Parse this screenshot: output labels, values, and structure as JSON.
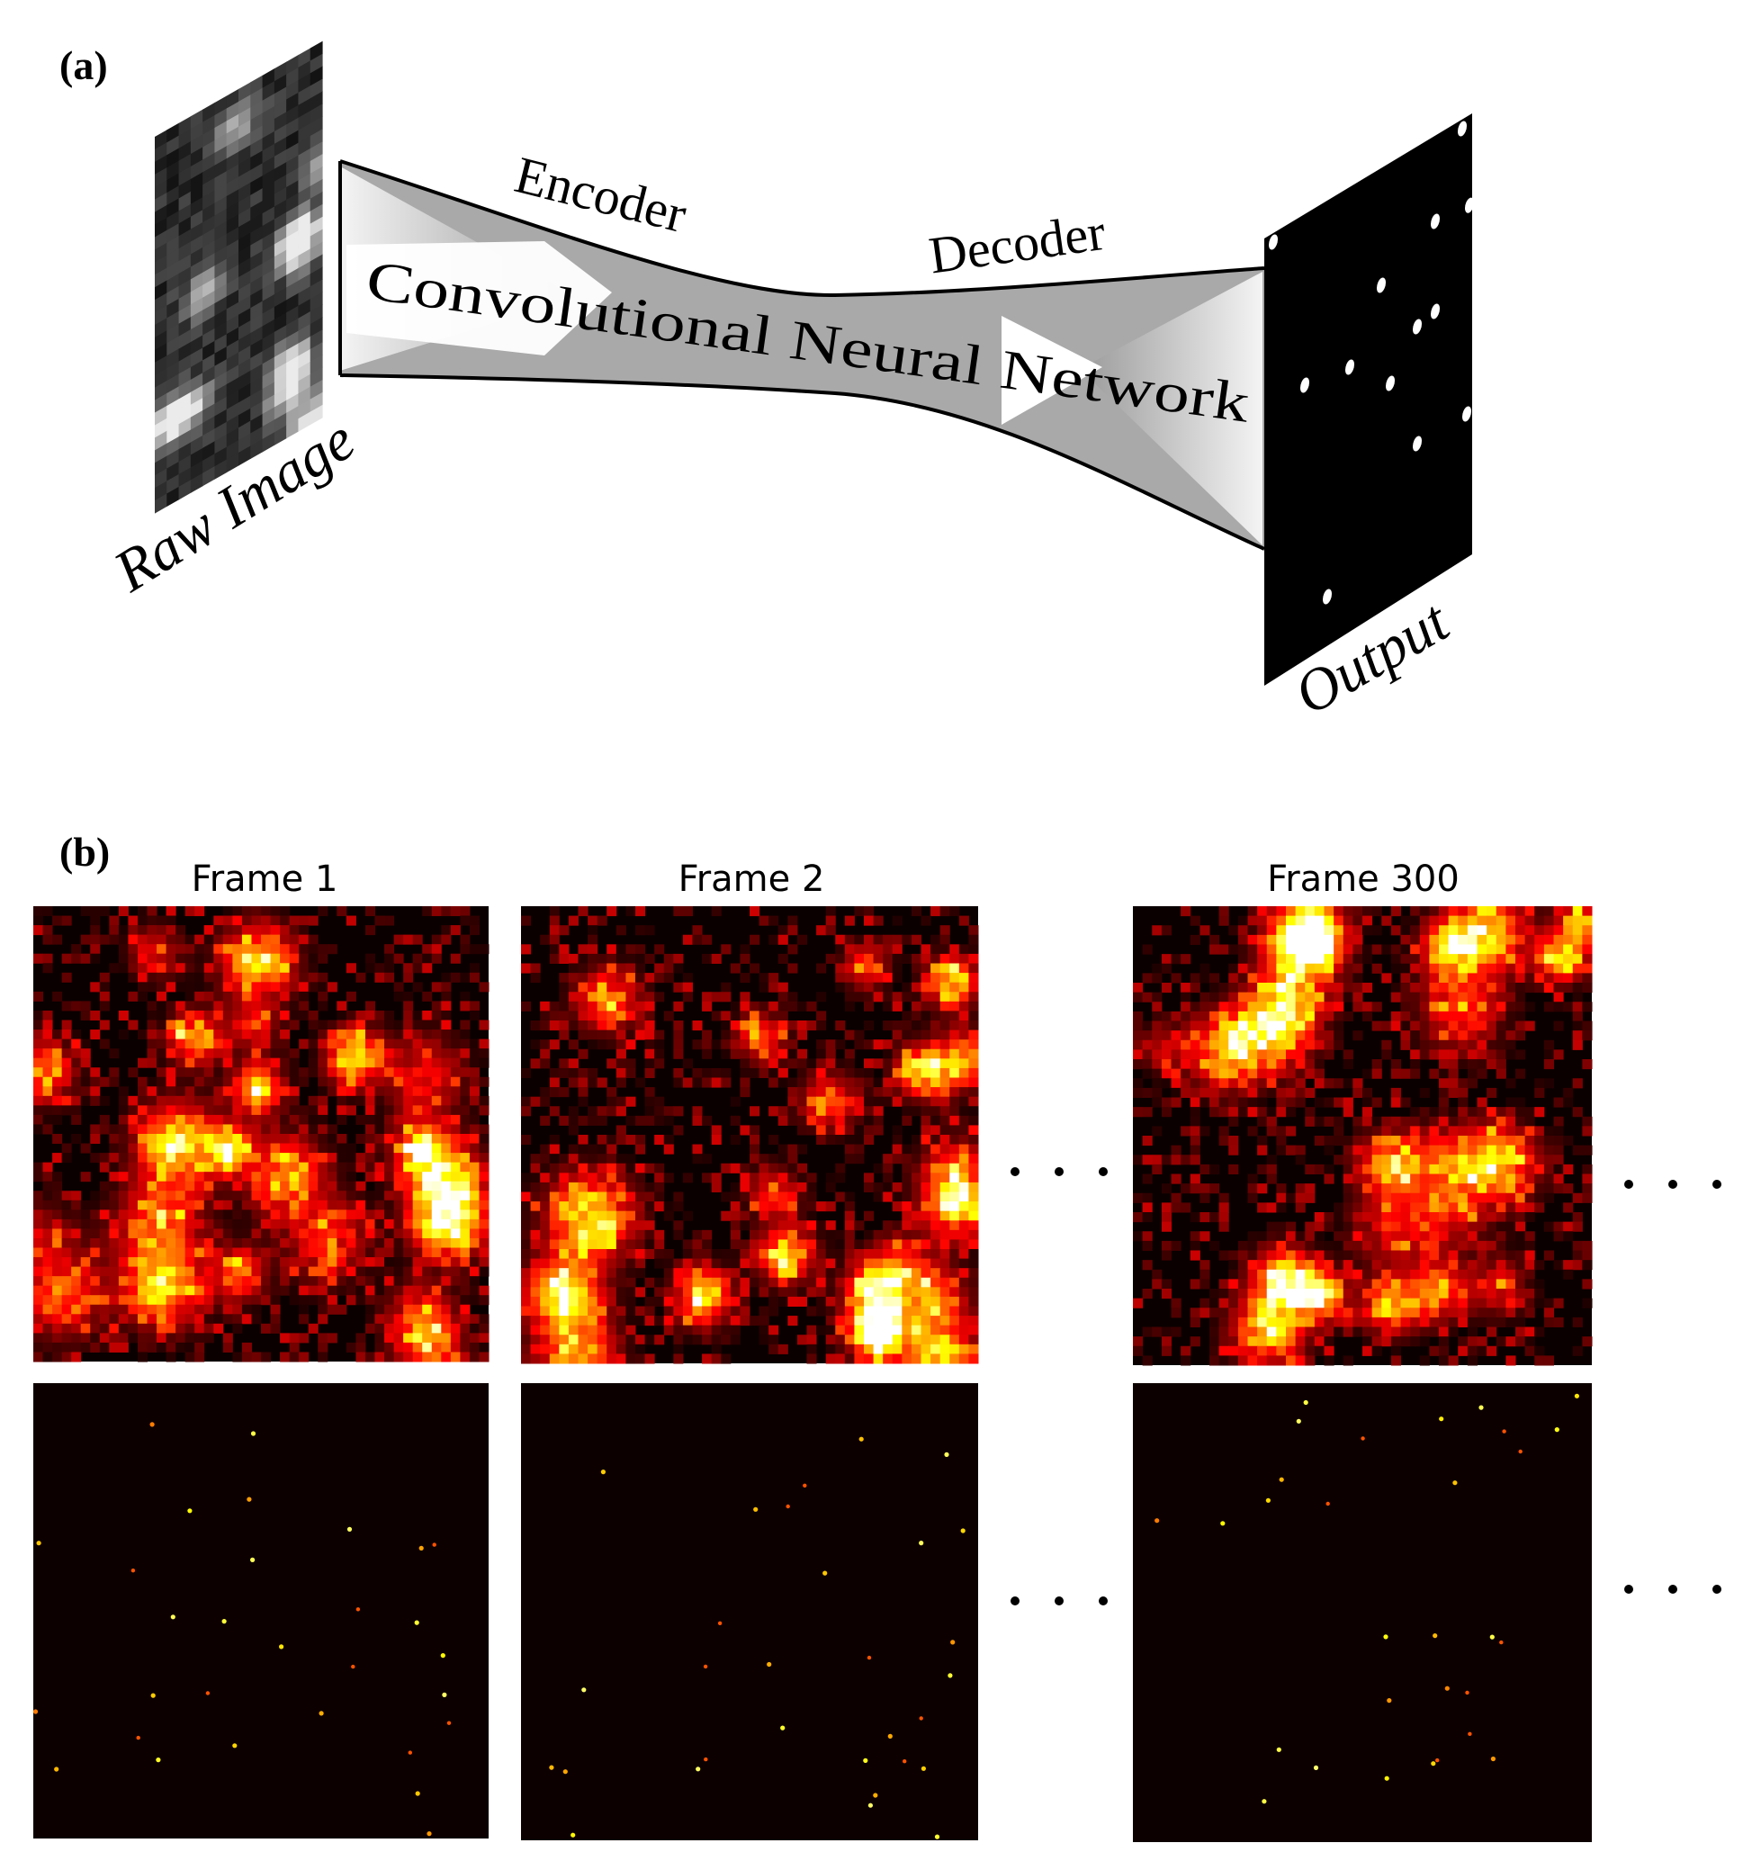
{
  "panel_a": {
    "label": "(a)",
    "input_label": "Raw Image",
    "encoder_label": "Encoder",
    "decoder_label": "Decoder",
    "network_label": "Convolutional Neural Network",
    "output_label": "Output"
  },
  "panel_b": {
    "label": "(b)",
    "frames": [
      {
        "title": "Frame 1"
      },
      {
        "title": "Frame 2"
      },
      {
        "title": "Frame 300"
      }
    ]
  }
}
